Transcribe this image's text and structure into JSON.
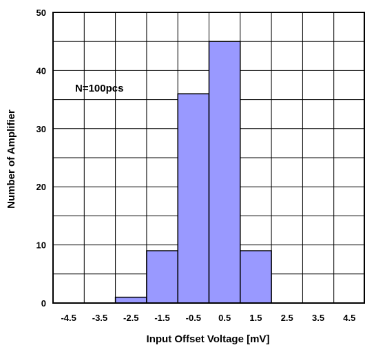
{
  "chart_data": {
    "type": "bar",
    "title": "",
    "xlabel": "Input Offset Voltage [mV]",
    "ylabel": "Number of Amplifier",
    "categories": [
      "-4.5",
      "-3.5",
      "-2.5",
      "-1.5",
      "-0.5",
      "0.5",
      "1.5",
      "2.5",
      "3.5",
      "4.5"
    ],
    "values": [
      0,
      0,
      1,
      9,
      36,
      45,
      9,
      0,
      0,
      0
    ],
    "ylim": [
      0,
      50
    ],
    "yticks": [
      "0",
      "10",
      "20",
      "30",
      "40",
      "50"
    ],
    "ytick_values": [
      0,
      10,
      20,
      30,
      40,
      50
    ],
    "y_minor_step": 5,
    "grid": true,
    "legend": "none",
    "annotation": "N=100pcs",
    "colors": {
      "bar_fill": "#9999FF",
      "bar_stroke": "#000000",
      "grid": "#000000",
      "background": "#FFFFFF"
    }
  }
}
